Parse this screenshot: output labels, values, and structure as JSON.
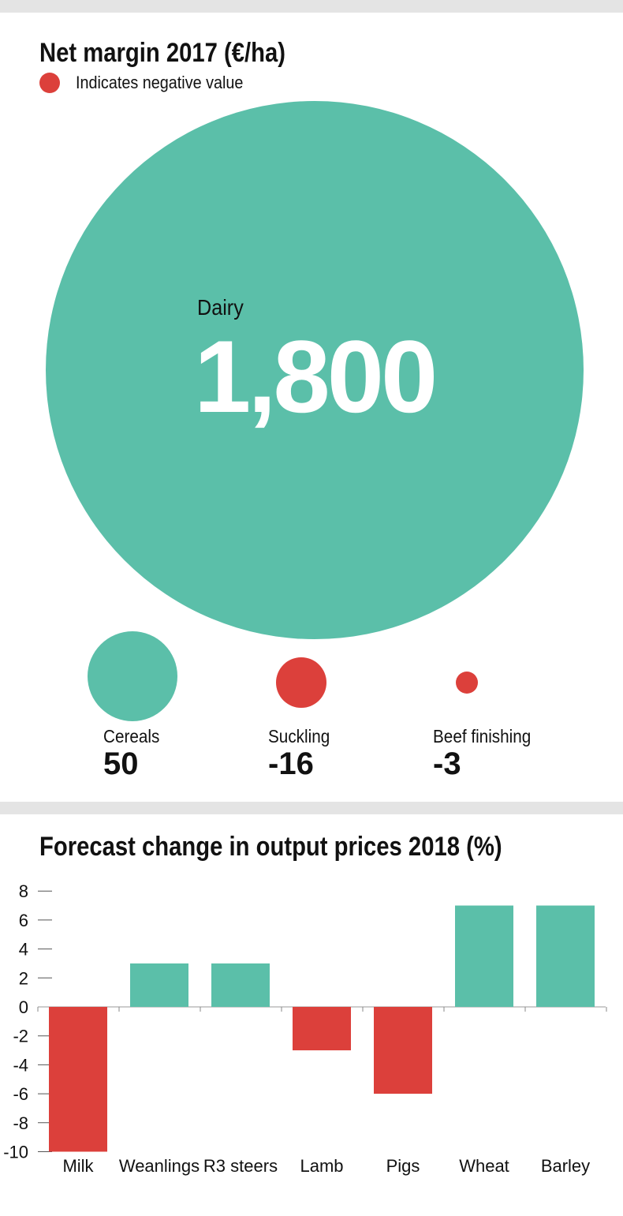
{
  "colors": {
    "positive": "#5bbfa9",
    "negative": "#dc403b",
    "band": "#e4e4e4"
  },
  "bubble_chart": {
    "title": "Net margin 2017 (€/ha)",
    "legend": "Indicates negative value",
    "items": [
      {
        "label": "Dairy",
        "value": "1,800"
      },
      {
        "label": "Cereals",
        "value": "50"
      },
      {
        "label": "Suckling",
        "value": "-16"
      },
      {
        "label": "Beef finishing",
        "value": "-3"
      }
    ]
  },
  "chart_data": {
    "type": "bar",
    "title": "Forecast change in output prices 2018 (%)",
    "categories": [
      "Milk",
      "Weanlings",
      "R3 steers",
      "Lamb",
      "Pigs",
      "Wheat",
      "Barley"
    ],
    "values": [
      -10,
      3,
      3,
      -3,
      -6,
      7,
      7
    ],
    "yticks": [
      "8",
      "6",
      "4",
      "2",
      "0",
      "-2",
      "-4",
      "-6",
      "-8",
      "-10"
    ],
    "ylim": [
      -10,
      8
    ],
    "xlabel": "",
    "ylabel": ""
  }
}
